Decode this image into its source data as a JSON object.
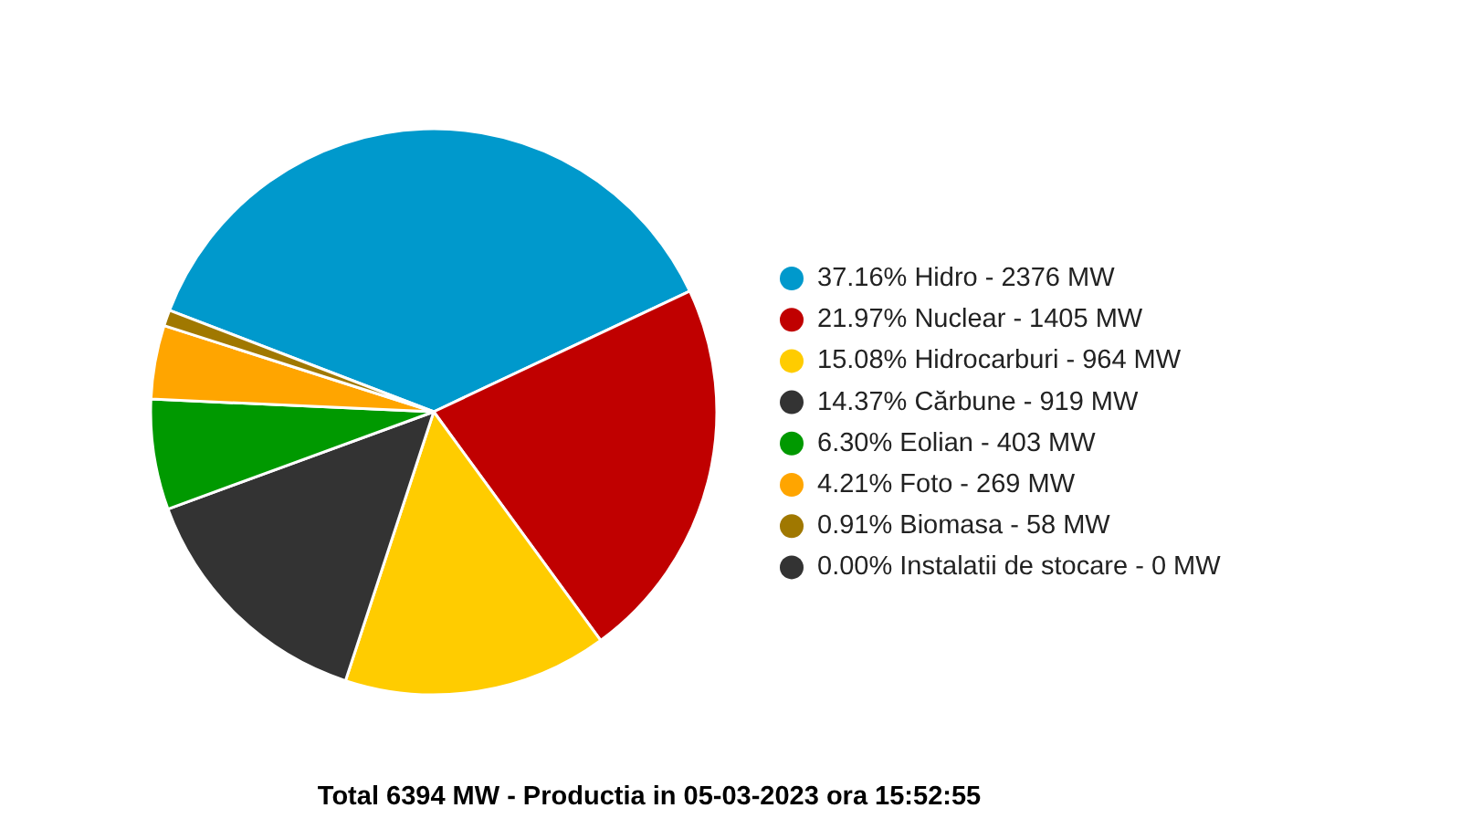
{
  "chart_data": {
    "type": "pie",
    "title": "Total 6394 MW - Productia in 05-03-2023 ora 15:52:55",
    "categories": [
      "37.16% Hidro - 2376 MW",
      "21.97% Nuclear - 1405 MW",
      "15.08% Hidrocarburi - 964 MW",
      "14.37% Cărbune - 919 MW",
      "6.30% Eolian - 403 MW",
      "4.21% Foto - 269 MW",
      "0.91% Biomasa - 58 MW",
      "0.00% Instalatii de stocare - 0 MW"
    ],
    "values": [
      37.16,
      21.97,
      15.08,
      14.37,
      6.3,
      4.21,
      0.91,
      0.0
    ],
    "colors": [
      "#0099cc",
      "#c00000",
      "#ffcc00",
      "#333333",
      "#009900",
      "#ffa500",
      "#a07800",
      "#333333"
    ],
    "legend": "right"
  }
}
